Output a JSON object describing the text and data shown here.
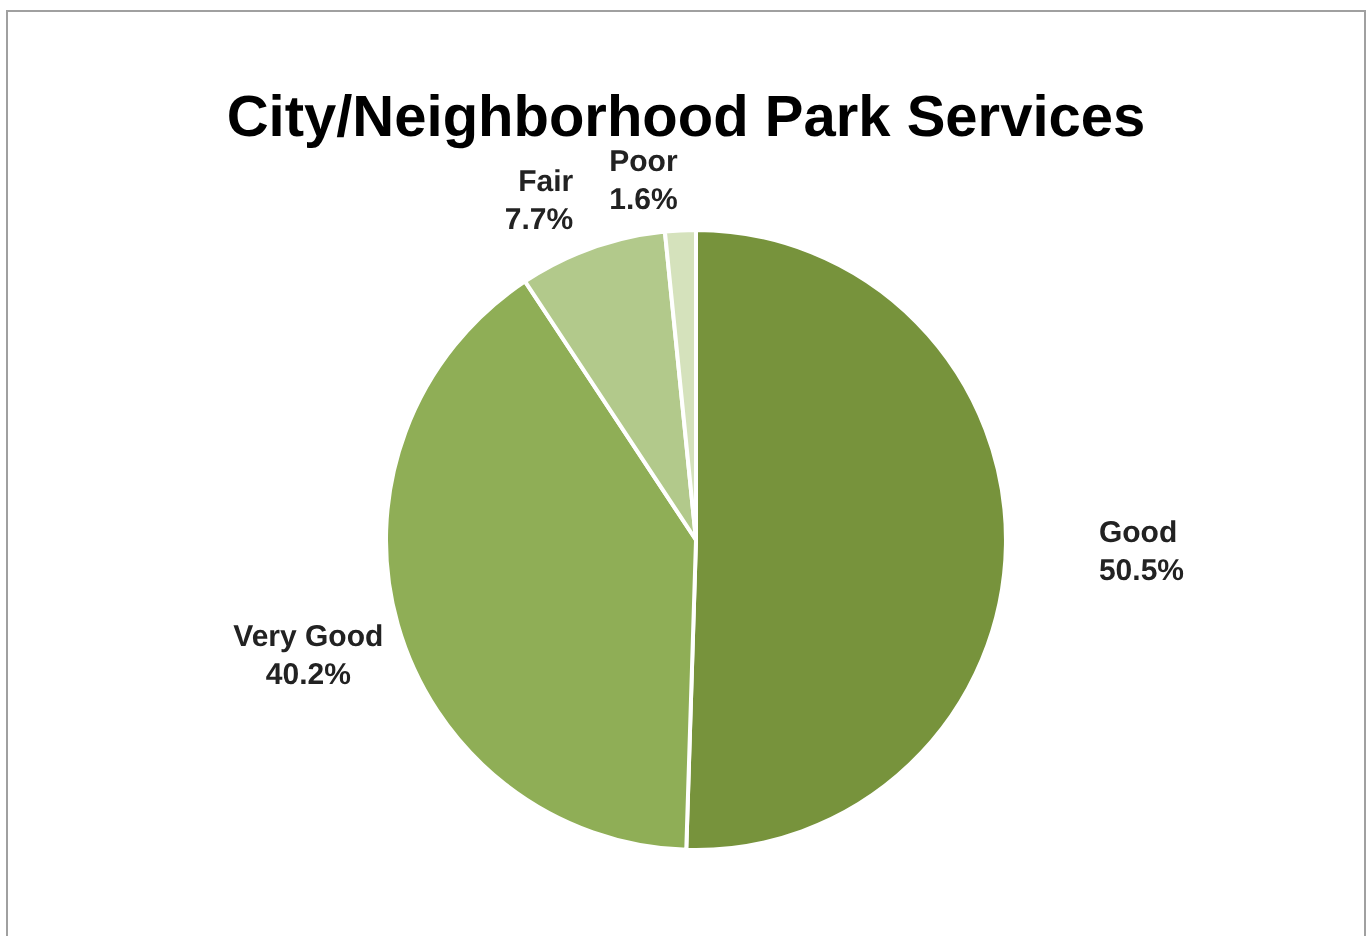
{
  "chart_data": {
    "type": "pie",
    "title": "City/Neighborhood Park Services",
    "categories": [
      "Good",
      "Very Good",
      "Fair",
      "Poor"
    ],
    "values": [
      50.5,
      40.2,
      7.7,
      1.6
    ],
    "colors": [
      "#77933c",
      "#8fae56",
      "#b2c98b",
      "#d5e2bc"
    ],
    "value_labels": [
      "50.5%",
      "40.2%",
      "7.7%",
      "1.6%"
    ],
    "legend": false
  }
}
